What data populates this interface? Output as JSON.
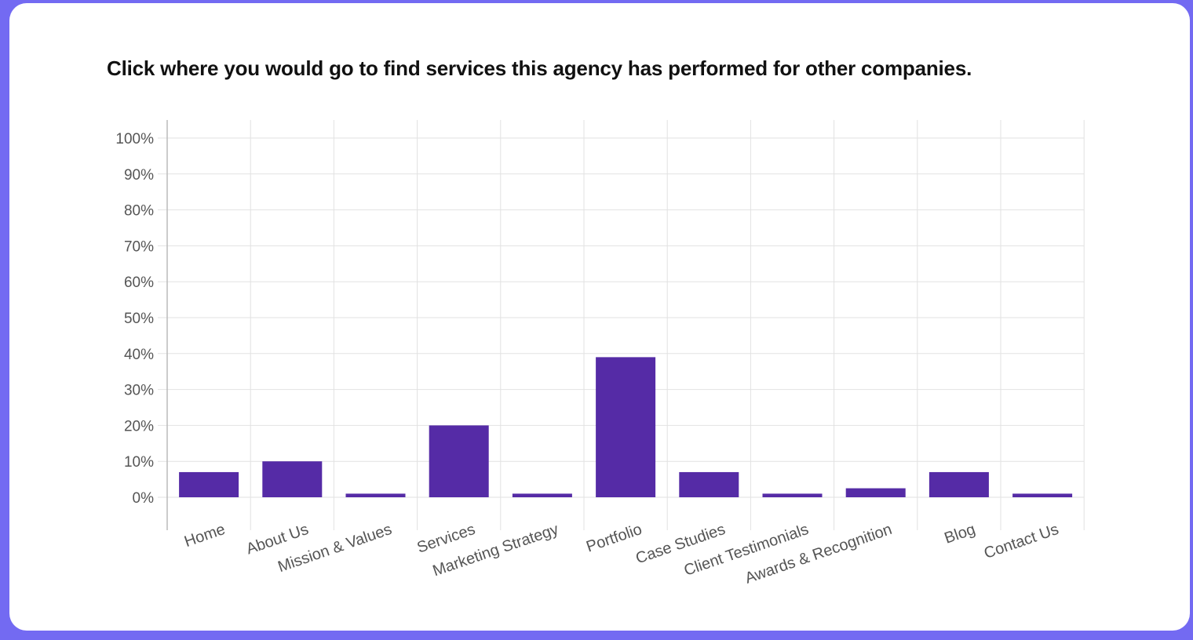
{
  "question": "Click where you would go to find services this agency has performed for other companies.",
  "colors": {
    "background": "#736af2",
    "card": "#ffffff",
    "bar": "#552ba6",
    "grid": "#e2e2e2",
    "axis": "#bbbbbb"
  },
  "chart_data": {
    "type": "bar",
    "title": "",
    "xlabel": "",
    "ylabel": "",
    "categories": [
      "Home",
      "About Us",
      "Mission & Values",
      "Services",
      "Marketing Strategy",
      "Portfolio",
      "Case Studies",
      "Client Testimonials",
      "Awards & Recognition",
      "Blog",
      "Contact Us"
    ],
    "values": [
      7,
      10,
      1,
      20,
      1,
      39,
      7,
      1,
      2.5,
      7,
      1
    ],
    "ylim": [
      0,
      100
    ],
    "yticks": [
      "0%",
      "10%",
      "20%",
      "30%",
      "40%",
      "50%",
      "60%",
      "70%",
      "80%",
      "90%",
      "100%"
    ],
    "grid": true,
    "legend": "none"
  }
}
